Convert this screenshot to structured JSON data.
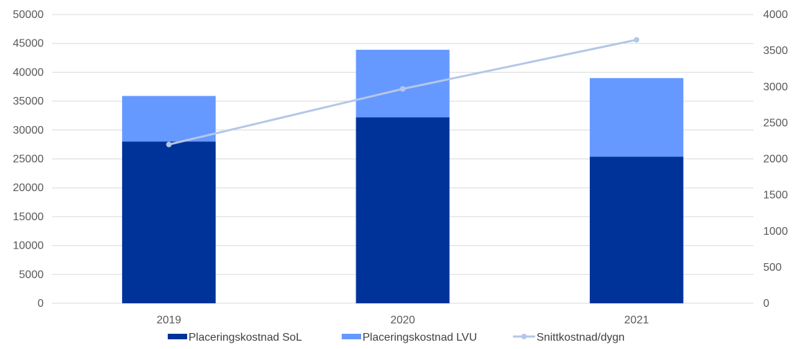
{
  "chart_data": {
    "type": "bar",
    "stacked": true,
    "categories": [
      "2019",
      "2020",
      "2021"
    ],
    "series": [
      {
        "name": "Placeringskostnad SoL",
        "type": "bar",
        "axis": "left",
        "color": "#003399",
        "values": [
          28000,
          32200,
          25400
        ]
      },
      {
        "name": "Placeringskostnad LVU",
        "type": "bar",
        "axis": "left",
        "color": "#6699ff",
        "values": [
          7900,
          11700,
          13600
        ]
      },
      {
        "name": "Snittkostnad/dygn",
        "type": "line",
        "axis": "right",
        "color": "#b4c7e7",
        "values": [
          2200,
          2970,
          3650
        ]
      }
    ],
    "y_left": {
      "min": 0,
      "max": 50000,
      "step": 5000,
      "ticks": [
        "0",
        "5000",
        "10000",
        "15000",
        "20000",
        "25000",
        "30000",
        "35000",
        "40000",
        "45000",
        "50000"
      ]
    },
    "y_right": {
      "min": 0,
      "max": 4000,
      "step": 500,
      "ticks": [
        "0",
        "500",
        "1000",
        "1500",
        "2000",
        "2500",
        "3000",
        "3500",
        "4000"
      ]
    },
    "grid": true,
    "legend_position": "bottom",
    "title": "",
    "xlabel": "",
    "ylabel": ""
  }
}
